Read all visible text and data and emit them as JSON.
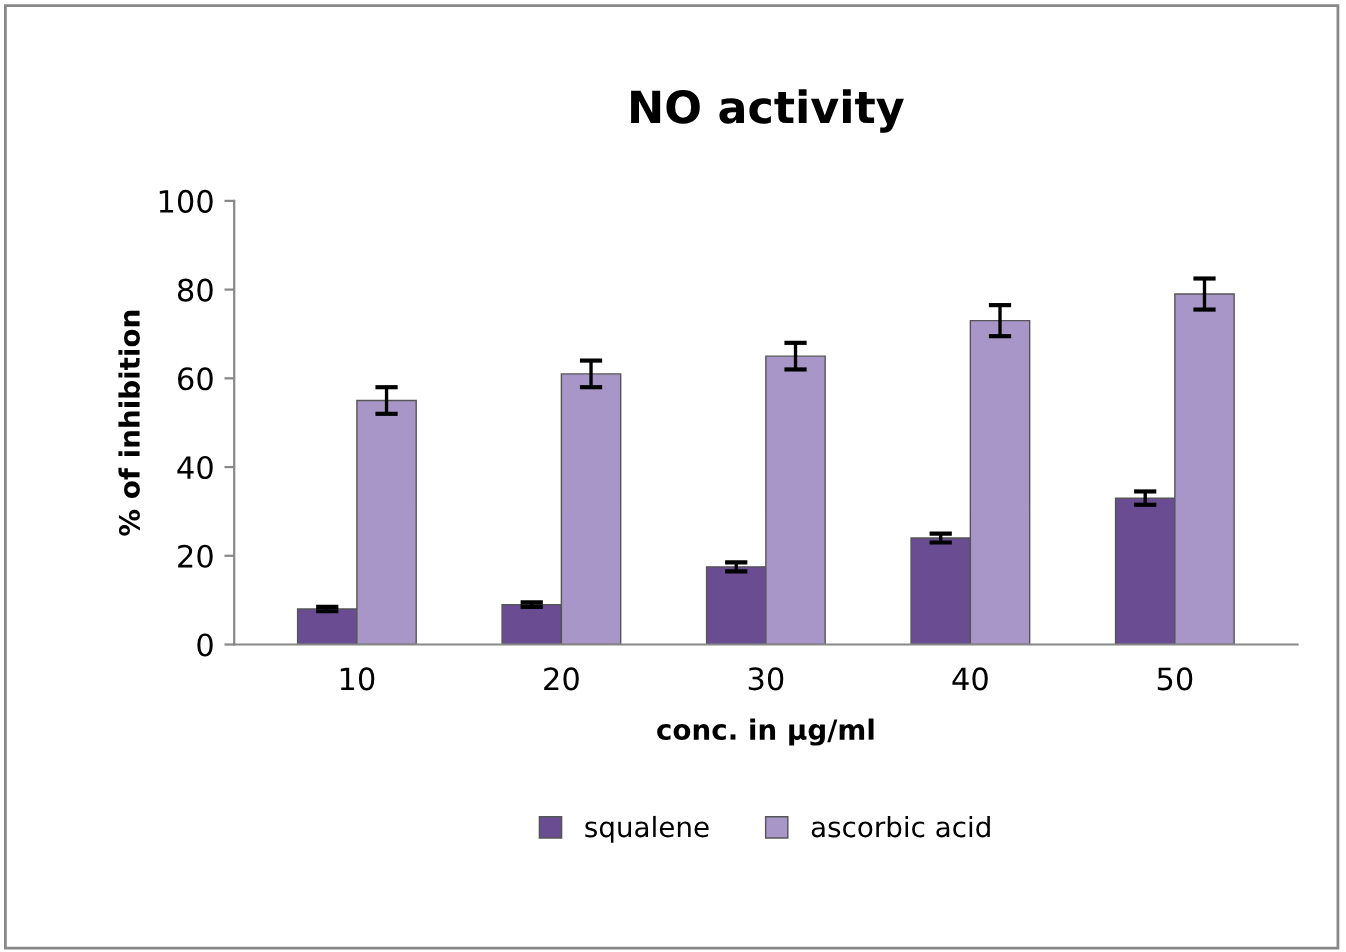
{
  "chart_data": {
    "type": "bar",
    "title": "NO activity",
    "xlabel": "conc. in µg/ml",
    "ylabel": "% of inhibition",
    "categories": [
      "10",
      "20",
      "30",
      "40",
      "50"
    ],
    "series": [
      {
        "name": "squalene",
        "color": "#6a4c93",
        "values": [
          8,
          9,
          17.5,
          24,
          33
        ],
        "errors": [
          0.5,
          0.5,
          1,
          1,
          1.5
        ]
      },
      {
        "name": "ascorbic acid",
        "color": "#a896c8",
        "values": [
          55,
          61,
          65,
          73,
          79
        ],
        "errors": [
          3,
          3,
          3,
          3.5,
          3.5
        ]
      }
    ],
    "ylim": [
      0,
      100
    ],
    "yticks": [
      0,
      20,
      40,
      60,
      80,
      100
    ],
    "grid": false,
    "legend": "bottom"
  }
}
